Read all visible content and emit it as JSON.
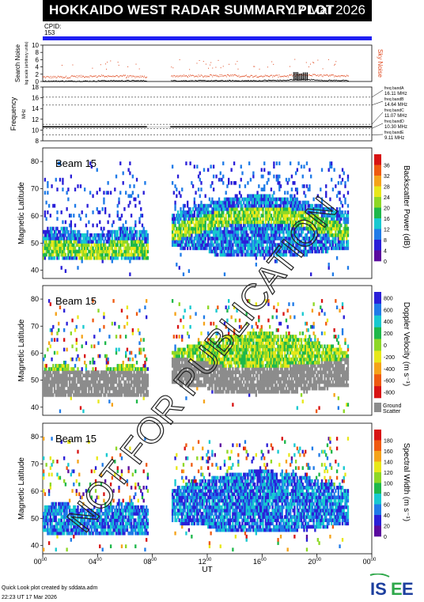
{
  "header": {
    "title": "HOKKAIDO WEST RADAR SUMMARY PLOT",
    "date": "17 Mar 2026"
  },
  "cpid": {
    "label": "CPID:",
    "value": "153"
  },
  "footer": {
    "credit": "Quick Look plot created by sddata.adm",
    "timestamp": "22:23 UT 17 Mar 2026"
  },
  "watermark": "NOT FOR PUBLICATION",
  "logo": "ISEE",
  "chart_data": [
    {
      "type": "line",
      "ylabel": "Search Noise",
      "ylabel_units": "log scale (arbitrary units)",
      "right_label": "Sky Noise",
      "ylim": [
        0,
        10
      ],
      "yticks": [
        "0",
        "2",
        "4",
        "6",
        "8",
        "10"
      ],
      "series": [
        {
          "name": "Sky Noise",
          "color": "#e04a20",
          "x": [
            0,
            2,
            4,
            6,
            8,
            9,
            10,
            12,
            14,
            16,
            18,
            20,
            22
          ],
          "values": [
            1.3,
            1.5,
            1.6,
            1.4,
            1.5,
            null,
            1.6,
            1.7,
            1.6,
            1.6,
            1.8,
            1.7,
            1.6
          ]
        },
        {
          "name": "Search Noise",
          "color": "#000000",
          "x": [
            0,
            2,
            4,
            6,
            8,
            9,
            10,
            12,
            14,
            16,
            18,
            20,
            22
          ],
          "values": [
            0.2,
            0.2,
            0.3,
            0.3,
            0.3,
            null,
            0.3,
            0.3,
            0.3,
            0.4,
            0.6,
            0.4,
            0.3
          ]
        }
      ],
      "spikes": [
        {
          "x": 18.3,
          "value": 2.6
        },
        {
          "x": 18.6,
          "value": 2.2
        },
        {
          "x": 19.0,
          "value": 2.5
        }
      ]
    },
    {
      "type": "line",
      "ylabel": "Frequency",
      "ylabel_units": "MHz",
      "ylim": [
        8,
        18
      ],
      "yticks": [
        "8",
        "10",
        "12",
        "14",
        "16",
        "18"
      ],
      "dotted_levels": [
        16.11,
        14.64,
        11.07,
        10.3,
        9.11
      ],
      "band_labels": [
        {
          "name": "freq bandA",
          "value": "16.11 MHz"
        },
        {
          "name": "freq bandB",
          "value": "14.64 MHz"
        },
        {
          "name": "freq bandC",
          "value": "11.07 MHz"
        },
        {
          "name": "freq bandD",
          "value": "10.30 MHz"
        },
        {
          "name": "freq bandE",
          "value": "9.11 MHz"
        }
      ],
      "series": [
        {
          "name": "Operating Frequency",
          "color": "#000000",
          "x": [
            0,
            24
          ],
          "values": [
            10.6,
            10.6
          ]
        }
      ]
    },
    {
      "type": "heatmap",
      "panel_label": "Beam 15",
      "ylabel": "Magnetic Latitude",
      "ylim": [
        37,
        85
      ],
      "yticks": [
        "40",
        "50",
        "60",
        "70",
        "80"
      ],
      "colorbar_label": "Backscatter Power (dB)",
      "colorbar_ticks": [
        "0",
        "4",
        "8",
        "12",
        "16",
        "20",
        "24",
        "28",
        "32",
        "36"
      ],
      "range": [
        0,
        36
      ]
    },
    {
      "type": "heatmap",
      "panel_label": "Beam 15",
      "ylabel": "Magnetic Latitude",
      "ylim": [
        37,
        85
      ],
      "yticks": [
        "40",
        "50",
        "60",
        "70",
        "80"
      ],
      "colorbar_label": "Doppler Velocity (m s⁻¹)",
      "colorbar_ticks": [
        "800",
        "600",
        "400",
        "200",
        "0",
        "-200",
        "-400",
        "-600",
        "-800"
      ],
      "range": [
        -800,
        800
      ],
      "ground_scatter_label": "Ground Scatter"
    },
    {
      "type": "heatmap",
      "panel_label": "Beam 15",
      "ylabel": "Magnetic Latitude",
      "ylim": [
        37,
        85
      ],
      "yticks": [
        "40",
        "50",
        "60",
        "70",
        "80"
      ],
      "colorbar_label": "Spectral Width (m s⁻¹)",
      "colorbar_ticks": [
        "0",
        "20",
        "40",
        "60",
        "80",
        "100",
        "120",
        "140",
        "160",
        "180"
      ],
      "range": [
        0,
        180
      ]
    }
  ],
  "time_axis": {
    "xlabel": "UT",
    "xlim": [
      0,
      24
    ],
    "ticks": [
      {
        "h": 0,
        "label": "00",
        "sup": "00"
      },
      {
        "h": 4,
        "label": "04",
        "sup": "00"
      },
      {
        "h": 8,
        "label": "08",
        "sup": "00"
      },
      {
        "h": 12,
        "label": "12",
        "sup": "00"
      },
      {
        "h": 16,
        "label": "16",
        "sup": "00"
      },
      {
        "h": 20,
        "label": "20",
        "sup": "00"
      },
      {
        "h": 24,
        "label": "00",
        "sup": "00"
      }
    ]
  },
  "colors": {
    "power": [
      "#5a0a9e",
      "#2a1fd8",
      "#1f7be8",
      "#17c9d0",
      "#1eb84a",
      "#8ed826",
      "#e8e81a",
      "#f5a31a",
      "#ef5a10",
      "#d81313"
    ],
    "velocity": [
      "#2a1fd8",
      "#1f7be8",
      "#17c9d0",
      "#1eb84a",
      "#8ed826",
      "#e8e81a",
      "#f5a31a",
      "#ef5a10",
      "#d81313"
    ],
    "width": [
      "#5a0a9e",
      "#2a1fd8",
      "#1f7be8",
      "#17c9d0",
      "#1eb84a",
      "#8ed826",
      "#e8e81a",
      "#f5a31a",
      "#ef5a10",
      "#d81313"
    ],
    "ground": "#8c8c8c",
    "title_bg": "#000000",
    "cpid_bar": "#1f1ff2",
    "logo_blue": "#1d3f9e",
    "logo_green": "#2ea84a"
  }
}
